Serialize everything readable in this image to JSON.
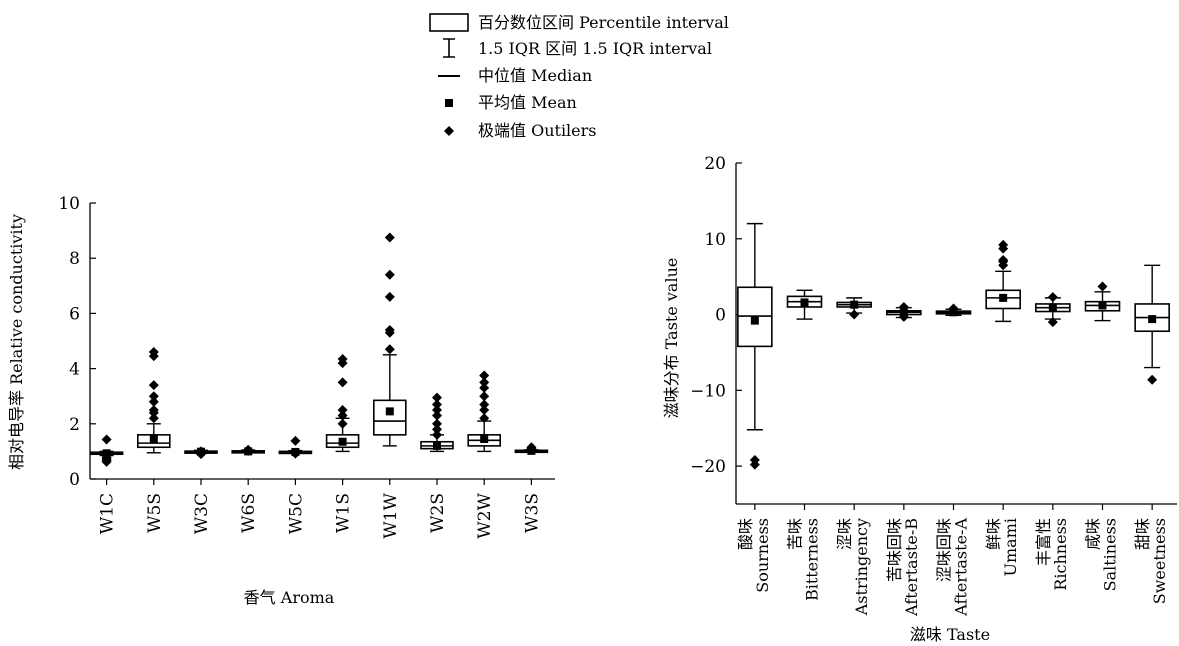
{
  "legend": {
    "items": [
      {
        "symbol": "box",
        "label": "百分数位区间 Percentile interval"
      },
      {
        "symbol": "whisker",
        "label": "1.5 IQR 区间 1.5 IQR interval"
      },
      {
        "symbol": "line",
        "label": "中位值 Median"
      },
      {
        "symbol": "square",
        "label": "平均值 Mean"
      },
      {
        "symbol": "diamond",
        "label": "极端值 Outilers"
      }
    ]
  },
  "chart_data": [
    {
      "type": "box",
      "xlabel": "香气 Aroma",
      "ylabel": "相对电导率 Relative conductivity",
      "ylim": [
        0,
        10
      ],
      "yticks": [
        0,
        2,
        4,
        6,
        8,
        10
      ],
      "categories": [
        "W1C",
        "W5S",
        "W3C",
        "W6S",
        "W5C",
        "W1S",
        "W1W",
        "W2S",
        "W2W",
        "W3S"
      ],
      "boxes": [
        {
          "category": "W1C",
          "q1": 0.9,
          "median": 0.93,
          "q3": 0.97,
          "whisker_low": 0.85,
          "whisker_high": 1.0,
          "mean": 0.93,
          "outliers": [
            0.62,
            0.68,
            0.72,
            0.78,
            1.43
          ]
        },
        {
          "category": "W5S",
          "q1": 1.15,
          "median": 1.3,
          "q3": 1.6,
          "whisker_low": 0.95,
          "whisker_high": 2.0,
          "mean": 1.45,
          "outliers": [
            2.2,
            2.4,
            2.5,
            2.8,
            3.0,
            3.4,
            4.45,
            4.6
          ]
        },
        {
          "category": "W3C",
          "q1": 0.97,
          "median": 0.99,
          "q3": 1.01,
          "whisker_low": 0.93,
          "whisker_high": 1.04,
          "mean": 0.99,
          "outliers": [
            0.9,
            1.0
          ]
        },
        {
          "category": "W6S",
          "q1": 0.99,
          "median": 1.0,
          "q3": 1.02,
          "whisker_low": 0.97,
          "whisker_high": 1.05,
          "mean": 1.0,
          "outliers": [
            1.02,
            1.06
          ]
        },
        {
          "category": "W5C",
          "q1": 0.96,
          "median": 0.98,
          "q3": 1.0,
          "whisker_low": 0.93,
          "whisker_high": 1.03,
          "mean": 0.98,
          "outliers": [
            0.92,
            1.38
          ]
        },
        {
          "category": "W1S",
          "q1": 1.15,
          "median": 1.3,
          "q3": 1.6,
          "whisker_low": 1.0,
          "whisker_high": 2.2,
          "mean": 1.35,
          "outliers": [
            2.0,
            2.3,
            2.5,
            3.5,
            4.2,
            4.35
          ]
        },
        {
          "category": "W1W",
          "q1": 1.6,
          "median": 2.1,
          "q3": 2.85,
          "whisker_low": 1.2,
          "whisker_high": 4.5,
          "mean": 2.45,
          "outliers": [
            4.7,
            5.3,
            5.4,
            6.6,
            7.4,
            8.75
          ]
        },
        {
          "category": "W2S",
          "q1": 1.1,
          "median": 1.2,
          "q3": 1.35,
          "whisker_low": 1.0,
          "whisker_high": 1.6,
          "mean": 1.2,
          "outliers": [
            1.6,
            1.8,
            2.0,
            2.3,
            2.5,
            2.7,
            2.95
          ]
        },
        {
          "category": "W2W",
          "q1": 1.2,
          "median": 1.4,
          "q3": 1.6,
          "whisker_low": 1.0,
          "whisker_high": 2.1,
          "mean": 1.45,
          "outliers": [
            2.2,
            2.5,
            2.7,
            3.0,
            3.3,
            3.5,
            3.75
          ]
        },
        {
          "category": "W3S",
          "q1": 1.0,
          "median": 1.02,
          "q3": 1.04,
          "whisker_low": 0.98,
          "whisker_high": 1.06,
          "mean": 1.02,
          "outliers": [
            1.1,
            1.15
          ]
        }
      ]
    },
    {
      "type": "box",
      "xlabel": "滋味 Taste",
      "ylabel": "滋味分布 Taste value",
      "ylim": [
        -25,
        20
      ],
      "yticks": [
        -20,
        -10,
        0,
        10,
        20
      ],
      "categories": [
        "酸味 Sourness",
        "苦味 Bitterness",
        "涩味 Astringency",
        "苦味回味 Aftertaste-B",
        "涩味回味 Aftertaste-A",
        "鲜味 Umami",
        "丰富性 Richness",
        "咸味 Saltiness",
        "甜味 Sweetness"
      ],
      "category_lines": [
        [
          "酸味",
          "Sourness"
        ],
        [
          "苦味",
          "Bitterness"
        ],
        [
          "涩味",
          "Astringency"
        ],
        [
          "苦味回味",
          "Aftertaste-B"
        ],
        [
          "涩味回味",
          "Aftertaste-A"
        ],
        [
          "鲜味",
          "Umami"
        ],
        [
          "丰富性",
          "Richness"
        ],
        [
          "咸味",
          "Saltiness"
        ],
        [
          "甜味",
          "Sweetness"
        ]
      ],
      "boxes": [
        {
          "category": "Sourness",
          "q1": -4.2,
          "median": -0.2,
          "q3": 3.6,
          "whisker_low": -15.2,
          "whisker_high": 12.0,
          "mean": -0.8,
          "outliers": [
            -19.2,
            -19.8
          ]
        },
        {
          "category": "Bitterness",
          "q1": 1.0,
          "median": 1.7,
          "q3": 2.4,
          "whisker_low": -0.6,
          "whisker_high": 3.2,
          "mean": 1.6,
          "outliers": []
        },
        {
          "category": "Astringency",
          "q1": 1.0,
          "median": 1.3,
          "q3": 1.6,
          "whisker_low": 0.2,
          "whisker_high": 2.2,
          "mean": 1.3,
          "outliers": [
            0.0
          ]
        },
        {
          "category": "Aftertaste-B",
          "q1": 0.0,
          "median": 0.3,
          "q3": 0.5,
          "whisker_low": -0.4,
          "whisker_high": 0.9,
          "mean": 0.3,
          "outliers": [
            -0.3,
            1.0
          ]
        },
        {
          "category": "Aftertaste-A",
          "q1": 0.1,
          "median": 0.3,
          "q3": 0.45,
          "whisker_low": -0.1,
          "whisker_high": 0.7,
          "mean": 0.3,
          "outliers": [
            0.8
          ]
        },
        {
          "category": "Umami",
          "q1": 0.8,
          "median": 2.2,
          "q3": 3.2,
          "whisker_low": -0.9,
          "whisker_high": 5.7,
          "mean": 2.2,
          "outliers": [
            6.5,
            7.0,
            7.2,
            8.7,
            9.2
          ]
        },
        {
          "category": "Richness",
          "q1": 0.4,
          "median": 0.9,
          "q3": 1.4,
          "whisker_low": -0.6,
          "whisker_high": 2.2,
          "mean": 0.9,
          "outliers": [
            -1.0,
            2.3
          ]
        },
        {
          "category": "Saltiness",
          "q1": 0.5,
          "median": 1.2,
          "q3": 1.7,
          "whisker_low": -0.8,
          "whisker_high": 3.0,
          "mean": 1.2,
          "outliers": [
            3.7
          ]
        },
        {
          "category": "Sweetness",
          "q1": -2.2,
          "median": -0.4,
          "q3": 1.4,
          "whisker_low": -7.0,
          "whisker_high": 6.5,
          "mean": -0.6,
          "outliers": [
            -8.6
          ]
        }
      ]
    }
  ]
}
